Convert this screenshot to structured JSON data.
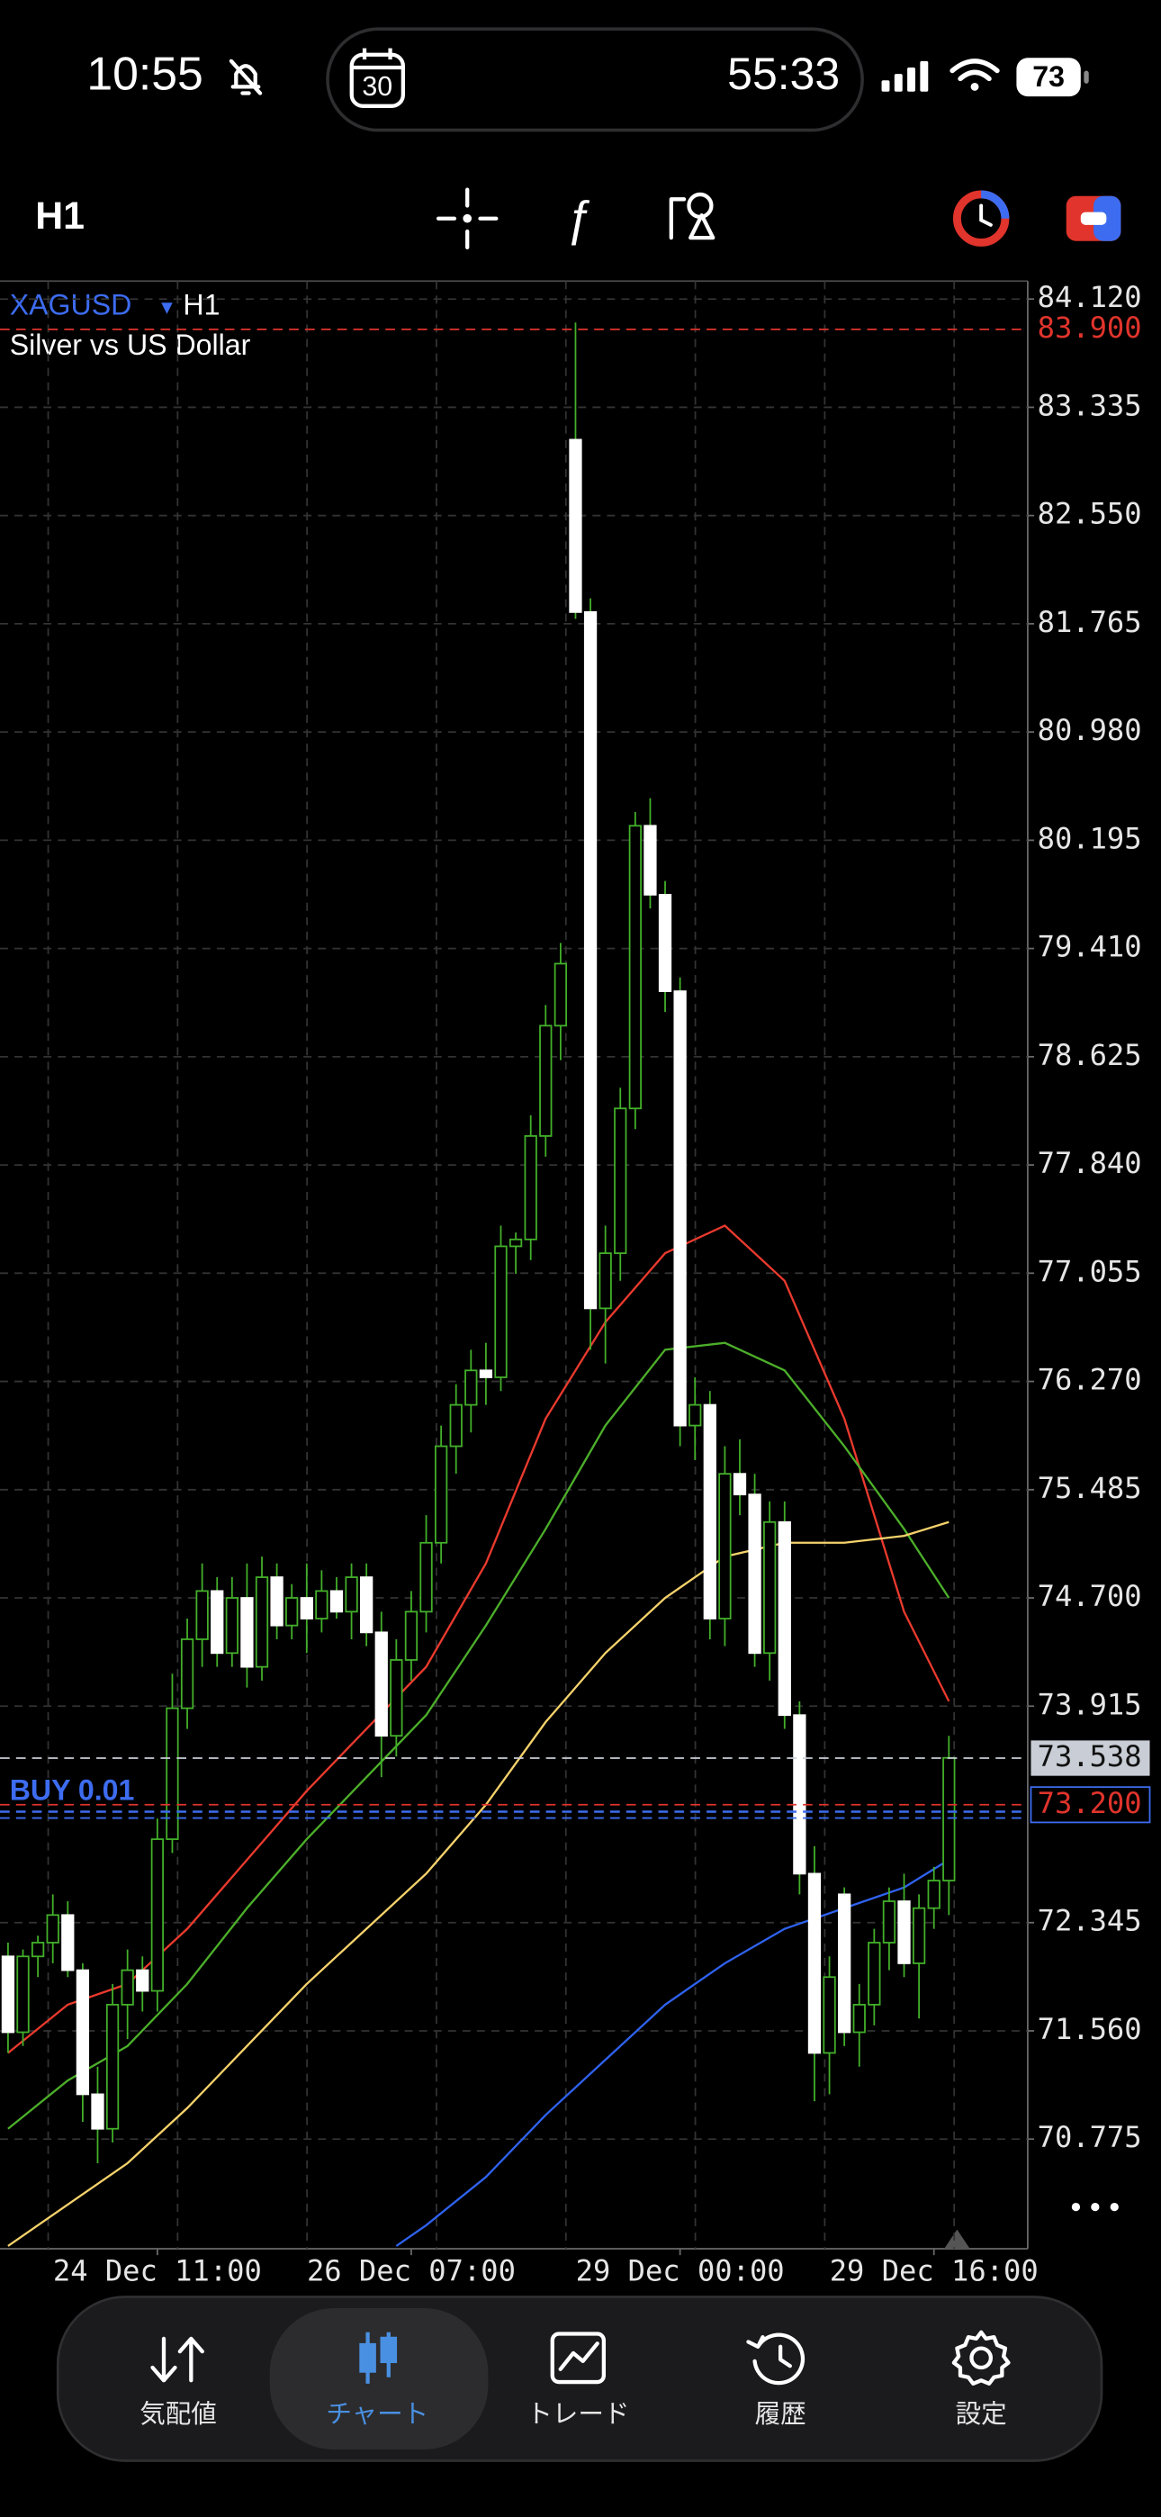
{
  "status_bar": {
    "time": "10:55",
    "calendar_day": "30",
    "timer": "55:33",
    "battery": "73"
  },
  "toolbar": {
    "timeframe": "H1"
  },
  "chart_data": {
    "type": "candlestick",
    "symbol": "XAGUSD",
    "timeframe": "H1",
    "subtitle": "Silver vs US Dollar",
    "categories": [
      null,
      null,
      null,
      null,
      null,
      null,
      null,
      null,
      null,
      null,
      "24 Dec 11:00",
      null,
      null,
      null,
      null,
      null,
      null,
      null,
      null,
      null,
      null,
      null,
      null,
      null,
      null,
      null,
      null,
      "26 Dec 07:00",
      null,
      null,
      null,
      null,
      null,
      null,
      null,
      null,
      null,
      null,
      null,
      null,
      null,
      null,
      null,
      null,
      null,
      "29 Dec 00:00",
      null,
      null,
      null,
      null,
      null,
      null,
      null,
      null,
      null,
      null,
      null,
      null,
      null,
      null,
      null,
      null,
      "29 Dec 16:00",
      null
    ],
    "open": [
      72.1,
      71.55,
      72.1,
      72.2,
      72.4,
      72.0,
      71.1,
      70.85,
      71.75,
      72.0,
      71.85,
      72.95,
      73.9,
      74.4,
      74.75,
      74.3,
      74.7,
      74.2,
      74.85,
      74.5,
      74.7,
      74.55,
      74.75,
      74.6,
      74.85,
      74.45,
      73.7,
      74.25,
      74.6,
      75.1,
      75.8,
      76.1,
      76.35,
      76.3,
      77.25,
      77.3,
      78.05,
      78.85,
      83.1,
      81.85,
      76.8,
      77.2,
      78.25,
      80.3,
      79.8,
      79.1,
      75.95,
      76.1,
      74.55,
      75.6,
      75.45,
      74.3,
      75.25,
      73.85,
      72.7,
      71.4,
      72.55,
      71.55,
      71.75,
      72.2,
      72.5,
      72.05,
      72.45,
      72.65
    ],
    "high": [
      72.2,
      72.15,
      72.25,
      72.55,
      72.5,
      72.05,
      71.3,
      71.9,
      72.15,
      72.1,
      73.1,
      74.15,
      74.55,
      74.95,
      74.85,
      74.85,
      74.95,
      75.0,
      74.95,
      74.8,
      74.95,
      74.9,
      74.85,
      74.95,
      74.95,
      74.6,
      74.4,
      74.75,
      75.3,
      75.95,
      76.25,
      76.5,
      76.55,
      77.4,
      77.35,
      78.2,
      79.0,
      79.45,
      83.95,
      81.95,
      77.4,
      78.4,
      80.4,
      80.5,
      79.9,
      79.2,
      76.3,
      76.2,
      75.8,
      75.85,
      75.6,
      75.4,
      75.4,
      73.95,
      72.9,
      72.1,
      72.6,
      71.9,
      72.3,
      72.6,
      72.7,
      72.55,
      72.75,
      73.7
    ],
    "low": [
      71.4,
      71.45,
      71.95,
      72.05,
      71.95,
      70.9,
      70.6,
      70.75,
      71.5,
      71.7,
      71.7,
      72.85,
      73.75,
      74.2,
      74.2,
      74.2,
      74.05,
      74.1,
      74.4,
      74.4,
      74.3,
      74.45,
      74.55,
      74.4,
      74.35,
      73.4,
      73.55,
      74.1,
      74.45,
      74.95,
      75.6,
      75.9,
      76.1,
      76.2,
      77.05,
      77.15,
      77.9,
      78.6,
      81.8,
      76.5,
      76.4,
      77.0,
      78.1,
      79.7,
      78.95,
      75.8,
      75.7,
      74.4,
      74.35,
      75.3,
      74.2,
      74.1,
      73.75,
      72.55,
      71.05,
      71.1,
      71.45,
      71.3,
      71.6,
      72.0,
      71.95,
      71.65,
      72.3,
      72.4
    ],
    "close": [
      71.55,
      72.1,
      72.2,
      72.4,
      72.0,
      71.1,
      70.85,
      71.75,
      72.0,
      71.85,
      72.95,
      73.9,
      74.4,
      74.75,
      74.3,
      74.7,
      74.2,
      74.85,
      74.5,
      74.7,
      74.55,
      74.75,
      74.6,
      74.85,
      74.45,
      73.7,
      74.25,
      74.6,
      75.1,
      75.8,
      76.1,
      76.35,
      76.3,
      77.25,
      77.3,
      78.05,
      78.85,
      79.3,
      81.85,
      76.8,
      77.2,
      78.25,
      80.3,
      79.8,
      79.1,
      75.95,
      76.1,
      74.55,
      75.6,
      75.45,
      74.3,
      75.25,
      73.85,
      72.7,
      71.4,
      71.95,
      71.55,
      71.75,
      72.2,
      72.5,
      72.05,
      72.45,
      72.65,
      73.54
    ],
    "up_color": "#43b02a",
    "down_color": "#ffffff",
    "moving_averages": [
      {
        "color": "#ea3a2e",
        "x": [
          0,
          4,
          8,
          12,
          16,
          20,
          24,
          28,
          32,
          36,
          40,
          44,
          48,
          52,
          56,
          60,
          63
        ],
        "values": [
          71.4,
          71.75,
          71.9,
          72.3,
          72.8,
          73.3,
          73.75,
          74.2,
          74.95,
          76.0,
          76.7,
          77.2,
          77.4,
          77.0,
          76.0,
          74.6,
          73.95
        ]
      },
      {
        "color": "#4caf2a",
        "x": [
          0,
          4,
          8,
          12,
          16,
          20,
          24,
          28,
          32,
          36,
          40,
          44,
          48,
          52,
          56,
          60,
          63
        ],
        "values": [
          70.85,
          71.2,
          71.45,
          71.9,
          72.45,
          72.95,
          73.4,
          73.85,
          74.5,
          75.2,
          75.95,
          76.5,
          76.55,
          76.35,
          75.8,
          75.2,
          74.7
        ]
      },
      {
        "color": "#f5d26b",
        "x": [
          0,
          4,
          8,
          12,
          16,
          20,
          24,
          28,
          32,
          36,
          40,
          44,
          48,
          52,
          56,
          60,
          63
        ],
        "values": [
          70.0,
          70.3,
          70.6,
          71.0,
          71.45,
          71.9,
          72.3,
          72.7,
          73.2,
          73.8,
          74.3,
          74.7,
          75.0,
          75.1,
          75.1,
          75.15,
          75.25
        ]
      },
      {
        "color": "#2f62ee",
        "x": [
          26,
          28,
          32,
          36,
          40,
          44,
          48,
          52,
          56,
          60,
          63
        ],
        "values": [
          70.0,
          70.15,
          70.5,
          70.95,
          71.35,
          71.75,
          72.05,
          72.3,
          72.45,
          72.6,
          72.8
        ]
      }
    ],
    "levels": [
      {
        "value": 83.9,
        "label": "83.900",
        "color": "#e0342c",
        "style": "text"
      },
      {
        "value": 73.538,
        "label": "73.538",
        "color": "#c9ced6",
        "style": "box"
      },
      {
        "value": 73.2,
        "label": "73.200",
        "color": "#e0342c",
        "style": "outline"
      }
    ],
    "order": {
      "label": "BUY 0.01",
      "price": 73.15,
      "color": "#3d6cf0"
    },
    "ylim": [
      69.98,
      84.25
    ],
    "yticks": [
      {
        "value": 84.12,
        "label": "84.120"
      },
      {
        "value": 83.335,
        "label": "83.335"
      },
      {
        "value": 82.55,
        "label": "82.550"
      },
      {
        "value": 81.765,
        "label": "81.765"
      },
      {
        "value": 80.98,
        "label": "80.980"
      },
      {
        "value": 80.195,
        "label": "80.195"
      },
      {
        "value": 79.41,
        "label": "79.410"
      },
      {
        "value": 78.625,
        "label": "78.625"
      },
      {
        "value": 77.84,
        "label": "77.840"
      },
      {
        "value": 77.055,
        "label": "77.055"
      },
      {
        "value": 76.27,
        "label": "76.270"
      },
      {
        "value": 75.485,
        "label": "75.485"
      },
      {
        "value": 74.7,
        "label": "74.700"
      },
      {
        "value": 73.915,
        "label": "73.915"
      },
      {
        "value": 72.345,
        "label": "72.345"
      },
      {
        "value": 71.56,
        "label": "71.560"
      },
      {
        "value": 70.775,
        "label": "70.775"
      }
    ],
    "grid": true
  },
  "tab_bar": {
    "tabs": [
      {
        "label": "気配値",
        "active": false
      },
      {
        "label": "チャート",
        "active": true
      },
      {
        "label": "トレード",
        "active": false
      },
      {
        "label": "履歴",
        "active": false
      },
      {
        "label": "設定",
        "active": false
      }
    ]
  }
}
